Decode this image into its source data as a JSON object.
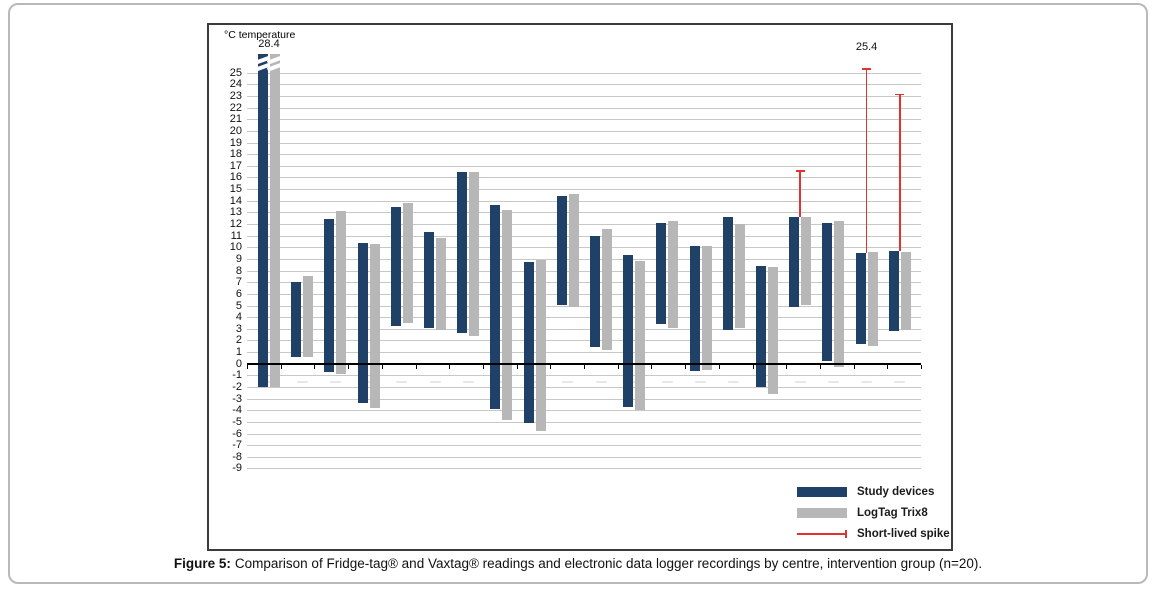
{
  "figure": {
    "caption_label": "Figure 5:",
    "caption_text": "Comparison of Fridge-tag® and Vaxtag® readings and electronic data logger recordings by centre, intervention group (n=20)."
  },
  "chart_data": {
    "type": "bar",
    "subtype": "floating-range-bars",
    "axis_title": "°C temperature",
    "ylabel": "°C temperature",
    "xlabel": "",
    "ylim": [
      -9,
      25
    ],
    "ytick_step": 1,
    "grid": true,
    "legend_position": "bottom-right",
    "groups": 20,
    "x_axis_labels_visible": false,
    "annotations": [
      {
        "group": 1,
        "text": "28.4",
        "meaning": "off-scale maximum of group 1 bars, axis break shown"
      },
      {
        "group": 19,
        "text": "25.4",
        "meaning": "top of short-lived spike at group 19"
      }
    ],
    "series": [
      {
        "name": "Study devices",
        "color": "#1f4168",
        "ranges": [
          [
            -2.0,
            28.4
          ],
          [
            0.6,
            7.0
          ],
          [
            -0.7,
            12.4
          ],
          [
            -3.4,
            10.4
          ],
          [
            3.2,
            13.5
          ],
          [
            3.1,
            11.3
          ],
          [
            2.6,
            16.5
          ],
          [
            -3.9,
            13.6
          ],
          [
            -5.1,
            8.7
          ],
          [
            5.0,
            14.4
          ],
          [
            1.4,
            11.0
          ],
          [
            -3.7,
            9.3
          ],
          [
            3.4,
            12.1
          ],
          [
            -0.6,
            10.1
          ],
          [
            2.9,
            12.6
          ],
          [
            -2.0,
            8.4
          ],
          [
            4.9,
            12.6
          ],
          [
            0.2,
            12.1
          ],
          [
            1.7,
            9.5
          ],
          [
            2.8,
            9.7
          ]
        ]
      },
      {
        "name": "LogTag Trix8",
        "color": "#b7b7b7",
        "ranges": [
          [
            -2.0,
            28.4
          ],
          [
            0.6,
            7.5
          ],
          [
            -0.9,
            13.1
          ],
          [
            -3.8,
            10.3
          ],
          [
            3.5,
            13.8
          ],
          [
            2.9,
            10.8
          ],
          [
            2.4,
            16.5
          ],
          [
            -4.8,
            13.2
          ],
          [
            -5.8,
            8.9
          ],
          [
            4.9,
            14.6
          ],
          [
            1.2,
            11.6
          ],
          [
            -4.0,
            8.8
          ],
          [
            3.1,
            12.3
          ],
          [
            -0.5,
            10.1
          ],
          [
            3.1,
            12.0
          ],
          [
            -2.6,
            8.3
          ],
          [
            5.0,
            12.6
          ],
          [
            -0.3,
            12.3
          ],
          [
            1.5,
            9.6
          ],
          [
            2.9,
            9.6
          ]
        ]
      },
      {
        "name": "Short-lived spike",
        "color": "#e03230",
        "marker": "spike",
        "spikes": [
          {
            "group": 17,
            "from": 12.6,
            "to": 16.6
          },
          {
            "group": 19,
            "from": 9.5,
            "to": 25.4
          },
          {
            "group": 20,
            "from": 9.7,
            "to": 23.2
          }
        ]
      }
    ],
    "broken_axis_groups": [
      {
        "group": 1,
        "actual_max": 28.4
      }
    ]
  }
}
